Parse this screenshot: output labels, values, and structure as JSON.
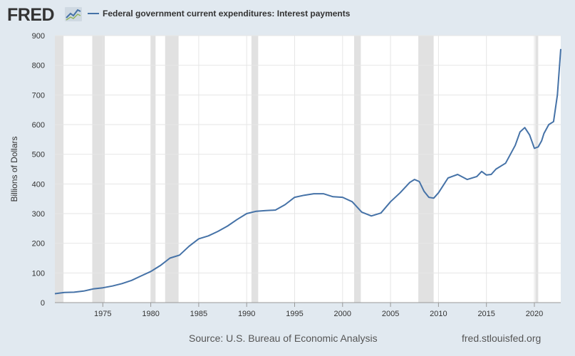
{
  "header": {
    "logo_text": "FRED",
    "logo_icon": "chart-line-icon"
  },
  "footer": {
    "source": "Source: U.S. Bureau of Economic Analysis",
    "credit": "fred.stlouisfed.org"
  },
  "colors": {
    "series": "#4572a7",
    "recession": "#e1e1e1",
    "grid": "#e6e6e6",
    "background": "#e1e9f0"
  },
  "chart_data": {
    "type": "line",
    "title": "",
    "xlabel": "",
    "ylabel": "Billions of Dollars",
    "xlim": [
      1970.0,
      2022.75
    ],
    "ylim": [
      0,
      900
    ],
    "yticks": [
      0,
      100,
      200,
      300,
      400,
      500,
      600,
      700,
      800,
      900
    ],
    "xticks": [
      1975,
      1980,
      1985,
      1990,
      1995,
      2000,
      2005,
      2010,
      2015,
      2020
    ],
    "grid": true,
    "legend_position": "top-left",
    "recessions": [
      [
        1970.0,
        1970.9
      ],
      [
        1973.9,
        1975.2
      ],
      [
        1980.0,
        1980.5
      ],
      [
        1981.5,
        1982.9
      ],
      [
        1990.5,
        1991.2
      ],
      [
        2001.2,
        2001.9
      ],
      [
        2007.9,
        2009.5
      ],
      [
        2020.1,
        2020.4
      ]
    ],
    "series": [
      {
        "name": "Federal government current expenditures: Interest payments",
        "x": [
          1970,
          1971,
          1972,
          1973,
          1974,
          1975,
          1976,
          1977,
          1978,
          1979,
          1980,
          1980.5,
          1981,
          1982,
          1983,
          1984,
          1985,
          1986,
          1987,
          1988,
          1989,
          1990,
          1991,
          1992,
          1993,
          1994,
          1995,
          1996,
          1997,
          1998,
          1999,
          2000,
          2001,
          2002,
          2003,
          2004,
          2005,
          2006,
          2007,
          2007.5,
          2008,
          2008.5,
          2009,
          2009.5,
          2010,
          2011,
          2012,
          2013,
          2014,
          2014.5,
          2015,
          2015.5,
          2016,
          2017,
          2018,
          2018.5,
          2019,
          2019.5,
          2020,
          2020.4,
          2020.75,
          2021,
          2021.5,
          2022,
          2022.4,
          2022.75
        ],
        "y": [
          30,
          34,
          35,
          39,
          46,
          50,
          56,
          64,
          75,
          90,
          105,
          115,
          125,
          150,
          160,
          190,
          215,
          225,
          240,
          258,
          280,
          300,
          308,
          310,
          312,
          330,
          355,
          362,
          367,
          367,
          357,
          355,
          340,
          305,
          292,
          302,
          340,
          370,
          405,
          415,
          408,
          375,
          355,
          352,
          370,
          420,
          432,
          415,
          425,
          442,
          430,
          432,
          450,
          470,
          530,
          575,
          590,
          565,
          520,
          525,
          545,
          570,
          600,
          610,
          700,
          855
        ]
      }
    ]
  }
}
